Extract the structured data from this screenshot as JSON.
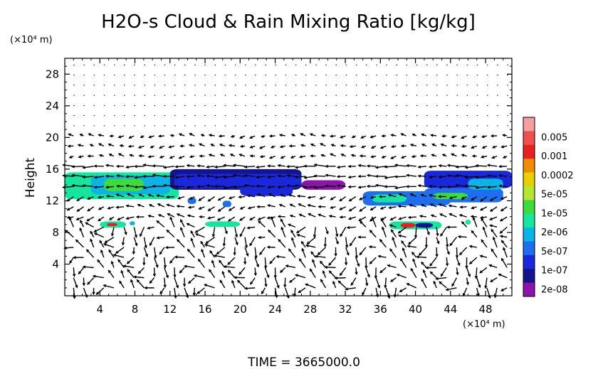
{
  "chart_data": {
    "type": "heatmap",
    "title": "H2O-s Cloud & Rain Mixing Ratio [kg/kg]",
    "ylabel": "Height",
    "yunit": "(×10⁴ m)",
    "xunit": "(×10⁴ m)",
    "footer": "TIME = 3665000.0",
    "xlim": [
      0,
      51
    ],
    "ylim": [
      0,
      30
    ],
    "xticks": [
      4,
      8,
      12,
      16,
      20,
      24,
      28,
      32,
      36,
      40,
      44,
      48
    ],
    "yticks": [
      4,
      8,
      12,
      16,
      20,
      24,
      28
    ],
    "colorbar": {
      "labels": [
        "0.005",
        "0.001",
        "0.0002",
        "5e-05",
        "1e-05",
        "2e-06",
        "5e-07",
        "1e-07",
        "2e-08"
      ],
      "colors": [
        "#f4a0a0",
        "#f05050",
        "#e82020",
        "#f08c00",
        "#e8d000",
        "#b4e632",
        "#3cdc3c",
        "#14e6a0",
        "#0ab4e6",
        "#1e6ef0",
        "#1a28dc",
        "#14148c",
        "#8c14aa"
      ]
    },
    "cloud_regions": [
      {
        "x0": 0,
        "x1": 13,
        "y0": 12.2,
        "y1": 15.6,
        "level": 7
      },
      {
        "x0": 3,
        "x1": 12,
        "y0": 12.8,
        "y1": 15.2,
        "level": 8
      },
      {
        "x0": 4.5,
        "x1": 9,
        "y0": 13.2,
        "y1": 14.8,
        "level": 6
      },
      {
        "x0": 12,
        "x1": 27,
        "y0": 13.4,
        "y1": 16.0,
        "level": 11
      },
      {
        "x0": 12.5,
        "x1": 27,
        "y0": 13.6,
        "y1": 15.4,
        "level": 10
      },
      {
        "x0": 20,
        "x1": 26,
        "y0": 12.6,
        "y1": 14.2,
        "level": 10
      },
      {
        "x0": 27,
        "x1": 32,
        "y0": 13.4,
        "y1": 14.6,
        "level": 12
      },
      {
        "x0": 34,
        "x1": 44,
        "y0": 11.4,
        "y1": 13.2,
        "level": 9
      },
      {
        "x0": 35,
        "x1": 39,
        "y0": 11.8,
        "y1": 12.8,
        "level": 7
      },
      {
        "x0": 41,
        "x1": 50,
        "y0": 11.8,
        "y1": 13.6,
        "level": 9
      },
      {
        "x0": 42,
        "x1": 46,
        "y0": 12.2,
        "y1": 13.0,
        "level": 6
      },
      {
        "x0": 41,
        "x1": 51,
        "y0": 13.6,
        "y1": 15.8,
        "level": 10
      },
      {
        "x0": 46,
        "x1": 50,
        "y0": 13.4,
        "y1": 14.8,
        "level": 8
      },
      {
        "x0": 14,
        "x1": 15,
        "y0": 11.6,
        "y1": 12.4,
        "level": 9
      },
      {
        "x0": 18,
        "x1": 19,
        "y0": 11.2,
        "y1": 12.0,
        "level": 9
      },
      {
        "x0": 4,
        "x1": 7,
        "y0": 8.6,
        "y1": 9.4,
        "level": 7
      },
      {
        "x0": 4.8,
        "x1": 6,
        "y0": 8.8,
        "y1": 9.2,
        "level": 2
      },
      {
        "x0": 7.4,
        "x1": 8,
        "y0": 8.9,
        "y1": 9.4,
        "level": 8
      },
      {
        "x0": 16,
        "x1": 20,
        "y0": 8.7,
        "y1": 9.4,
        "level": 7
      },
      {
        "x0": 37,
        "x1": 43,
        "y0": 8.4,
        "y1": 9.4,
        "level": 7
      },
      {
        "x0": 38.3,
        "x1": 40,
        "y0": 8.6,
        "y1": 9.2,
        "level": 2
      },
      {
        "x0": 40,
        "x1": 42,
        "y0": 8.6,
        "y1": 9.2,
        "level": 11
      },
      {
        "x0": 45.7,
        "x1": 46.3,
        "y0": 9.0,
        "y1": 9.6,
        "level": 7
      }
    ]
  }
}
